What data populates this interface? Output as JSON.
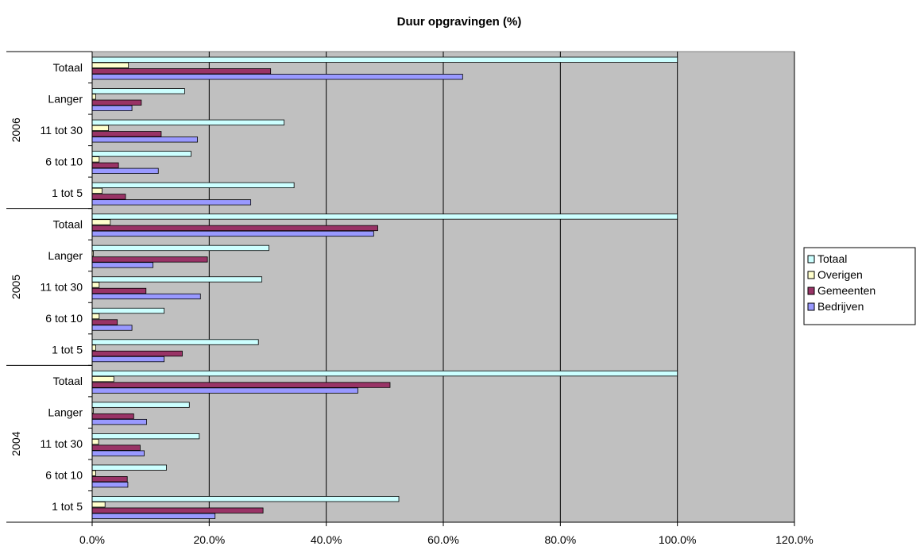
{
  "chart_data": {
    "type": "bar",
    "orientation": "horizontal",
    "title": "Duur opgravingen (%)",
    "xlabel": "",
    "ylabel": "",
    "xlim": [
      0,
      120
    ],
    "x_ticks": [
      0,
      20,
      40,
      60,
      80,
      100,
      120
    ],
    "x_tick_labels": [
      "0.0%",
      "20.0%",
      "40.0%",
      "60.0%",
      "80.0%",
      "100.0%",
      "120.0%"
    ],
    "grid": true,
    "plot_background": "#c0c0c0",
    "legend_position": "right",
    "series": [
      {
        "name": "Totaal",
        "color": "#ccffff"
      },
      {
        "name": "Overigen",
        "color": "#ffffcc"
      },
      {
        "name": "Gemeenten",
        "color": "#993366"
      },
      {
        "name": "Bedrijven",
        "color": "#9999ff"
      }
    ],
    "groups": [
      {
        "label": "2006",
        "categories": [
          {
            "label": "Totaal",
            "values": [
              100,
              6.2,
              30.5,
              63.3
            ]
          },
          {
            "label": "Langer",
            "values": [
              15.8,
              0.6,
              8.4,
              6.8
            ]
          },
          {
            "label": "11 tot 30",
            "values": [
              32.8,
              2.8,
              11.8,
              18.0
            ]
          },
          {
            "label": "6 tot 10",
            "values": [
              16.9,
              1.2,
              4.5,
              11.3
            ]
          },
          {
            "label": "1 tot 5",
            "values": [
              34.5,
              1.7,
              5.7,
              27.1
            ]
          }
        ]
      },
      {
        "label": "2005",
        "categories": [
          {
            "label": "Totaal",
            "values": [
              100,
              3.1,
              48.8,
              48.1
            ]
          },
          {
            "label": "Langer",
            "values": [
              30.2,
              0.2,
              19.7,
              10.4
            ]
          },
          {
            "label": "11 tot 30",
            "values": [
              29.0,
              1.2,
              9.2,
              18.5
            ]
          },
          {
            "label": "6 tot 10",
            "values": [
              12.3,
              1.2,
              4.3,
              6.8
            ]
          },
          {
            "label": "1 tot 5",
            "values": [
              28.4,
              0.6,
              15.4,
              12.3
            ]
          }
        ]
      },
      {
        "label": "2004",
        "categories": [
          {
            "label": "Totaal",
            "values": [
              100,
              3.7,
              50.9,
              45.4
            ]
          },
          {
            "label": "Langer",
            "values": [
              16.6,
              0.2,
              7.1,
              9.3
            ]
          },
          {
            "label": "11 tot 30",
            "values": [
              18.3,
              1.1,
              8.2,
              8.9
            ]
          },
          {
            "label": "6 tot 10",
            "values": [
              12.7,
              0.6,
              6.0,
              6.1
            ]
          },
          {
            "label": "1 tot 5",
            "values": [
              52.4,
              2.2,
              29.2,
              21.0
            ]
          }
        ]
      }
    ]
  }
}
